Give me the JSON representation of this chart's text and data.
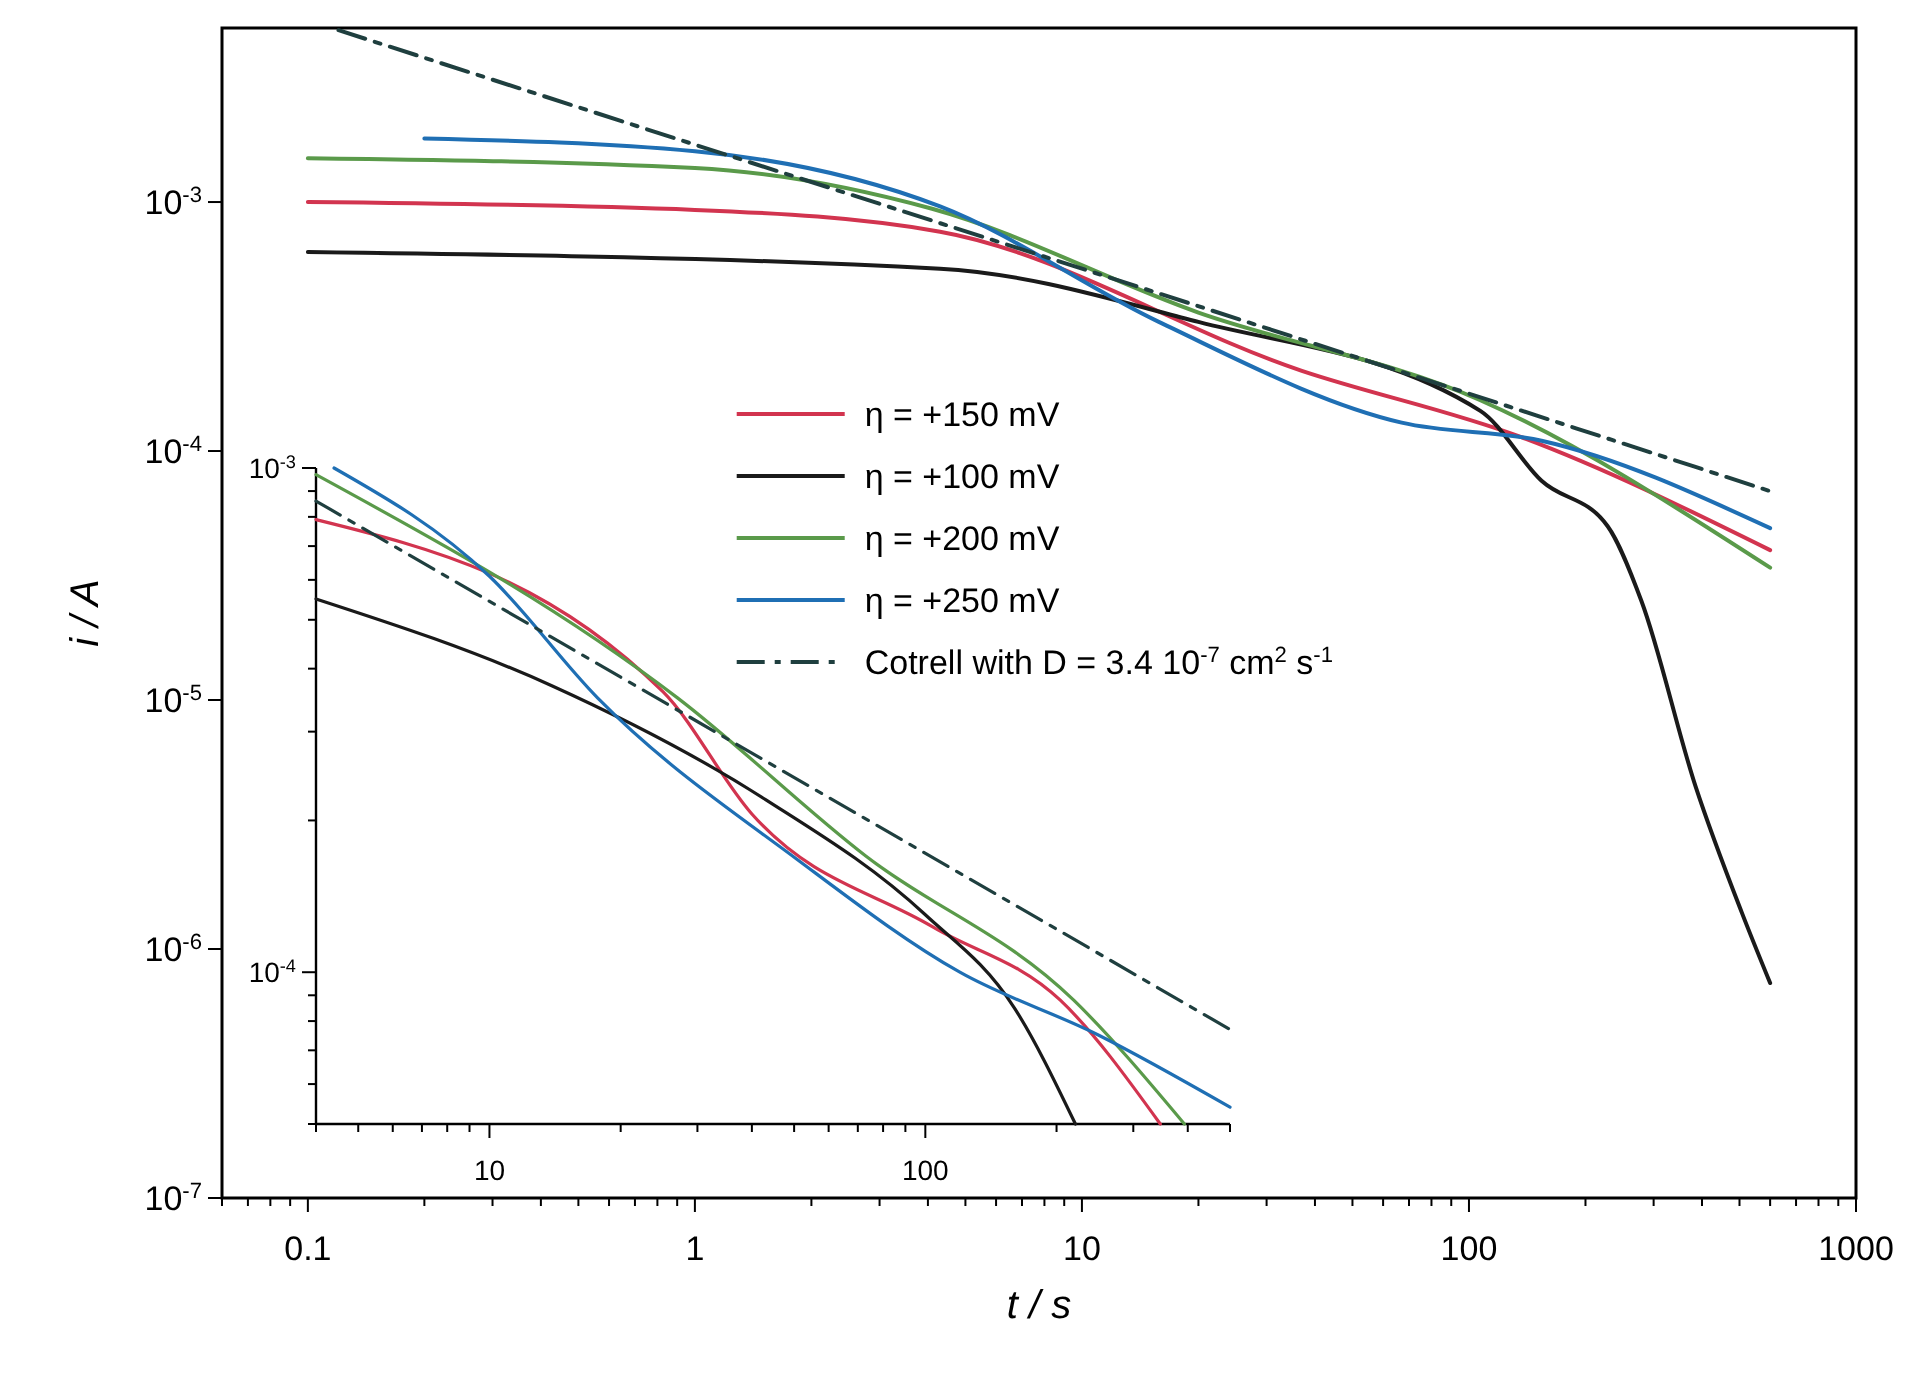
{
  "chart_data": [
    {
      "type": "line",
      "xlabel": "t / s",
      "ylabel": "i / A",
      "log": "xy",
      "legend": "center",
      "xlim": [
        0.06,
        1000
      ],
      "ylim": [
        1e-07,
        0.005
      ],
      "xticks": [
        {
          "value": 0.06,
          "label": null
        },
        {
          "value": 0.07,
          "label": null
        },
        {
          "value": 0.08,
          "label": null
        },
        {
          "value": 0.09,
          "label": null
        },
        {
          "value": 0.1,
          "label": "0.1"
        },
        {
          "value": 0.2,
          "label": null
        },
        {
          "value": 0.3,
          "label": null
        },
        {
          "value": 0.4,
          "label": null
        },
        {
          "value": 0.5,
          "label": null
        },
        {
          "value": 0.6,
          "label": null
        },
        {
          "value": 0.7,
          "label": null
        },
        {
          "value": 0.8,
          "label": null
        },
        {
          "value": 0.9,
          "label": null
        },
        {
          "value": 1,
          "label": "1"
        },
        {
          "value": 2,
          "label": null
        },
        {
          "value": 3,
          "label": null
        },
        {
          "value": 4,
          "label": null
        },
        {
          "value": 5,
          "label": null
        },
        {
          "value": 6,
          "label": null
        },
        {
          "value": 7,
          "label": null
        },
        {
          "value": 8,
          "label": null
        },
        {
          "value": 9,
          "label": null
        },
        {
          "value": 10,
          "label": "10"
        },
        {
          "value": 20,
          "label": null
        },
        {
          "value": 30,
          "label": null
        },
        {
          "value": 40,
          "label": null
        },
        {
          "value": 50,
          "label": null
        },
        {
          "value": 60,
          "label": null
        },
        {
          "value": 70,
          "label": null
        },
        {
          "value": 80,
          "label": null
        },
        {
          "value": 90,
          "label": null
        },
        {
          "value": 100,
          "label": "100"
        },
        {
          "value": 200,
          "label": null
        },
        {
          "value": 300,
          "label": null
        },
        {
          "value": 400,
          "label": null
        },
        {
          "value": 500,
          "label": null
        },
        {
          "value": 600,
          "label": null
        },
        {
          "value": 700,
          "label": null
        },
        {
          "value": 800,
          "label": null
        },
        {
          "value": 900,
          "label": null
        },
        {
          "value": 1000,
          "label": "1000"
        }
      ],
      "yticks": [
        {
          "value": 1e-07,
          "label": "10$^{-7}$"
        },
        {
          "value": 1e-06,
          "label": "10$^{-6}$"
        },
        {
          "value": 1e-05,
          "label": "10$^{-5}$"
        },
        {
          "value": 0.0001,
          "label": "10$^{-4}$"
        },
        {
          "value": 0.001,
          "label": "10$^{-3}$"
        }
      ],
      "series": [
        {
          "name": "η = +150 mV",
          "color": "#d2344f",
          "x": [
            0.1,
            1,
            4.3,
            37,
            136,
            600
          ],
          "values": [
            0.001,
            0.00093,
            0.00076,
            0.00021,
            0.000114,
            4e-05
          ]
        },
        {
          "name": "η = +100 mV",
          "color": "#1a1a1a",
          "x": [
            0.1,
            4.3,
            20,
            107,
            154,
            228,
            279,
            385,
            507,
            600
          ],
          "values": [
            0.00063,
            0.00054,
            0.00033,
            0.000145,
            7.6e-05,
            5e-05,
            2.5e-05,
            4.5e-06,
            1.4e-06,
            7.3e-07
          ]
        },
        {
          "name": "η = +200 mV",
          "color": "#5a9a4a",
          "x": [
            0.1,
            1,
            4.1,
            20,
            107,
            600
          ],
          "values": [
            0.0015,
            0.00137,
            0.00094,
            0.00036,
            0.00016,
            3.4e-05
          ]
        },
        {
          "name": "η = +250 mV",
          "color": "#1f6fb4",
          "x": [
            0.2,
            1,
            4.3,
            15.8,
            67,
            154,
            600
          ],
          "values": [
            0.0018,
            0.0016,
            0.00096,
            0.00033,
            0.00013,
            0.00011,
            4.9e-05
          ]
        },
        {
          "name": "Cotrell with D = 3.4 10$^{-7}$ cm$^{2}$ s$^{-1}$",
          "color": "#1f3f3f",
          "line_style": "dashed",
          "x": [
            0.12,
            1,
            10,
            100,
            600
          ],
          "values": [
            0.0049,
            0.0017,
            0.00054,
            0.00017,
            6.9e-05
          ]
        }
      ]
    },
    {
      "type": "line",
      "log": "xy",
      "xlim": [
        4,
        500
      ],
      "ylim": [
        5e-05,
        0.001
      ],
      "xticks": [
        {
          "value": 4,
          "label": null
        },
        {
          "value": 5,
          "label": null
        },
        {
          "value": 6,
          "label": null
        },
        {
          "value": 7,
          "label": null
        },
        {
          "value": 8,
          "label": null
        },
        {
          "value": 9,
          "label": null
        },
        {
          "value": 10,
          "label": "10"
        },
        {
          "value": 20,
          "label": null
        },
        {
          "value": 30,
          "label": null
        },
        {
          "value": 40,
          "label": null
        },
        {
          "value": 50,
          "label": null
        },
        {
          "value": 60,
          "label": null
        },
        {
          "value": 70,
          "label": null
        },
        {
          "value": 80,
          "label": null
        },
        {
          "value": 90,
          "label": null
        },
        {
          "value": 100,
          "label": "100"
        },
        {
          "value": 200,
          "label": null
        },
        {
          "value": 300,
          "label": null
        },
        {
          "value": 400,
          "label": null
        },
        {
          "value": 500,
          "label": null
        }
      ],
      "yticks": [
        {
          "value": 5e-05,
          "label": null
        },
        {
          "value": 6e-05,
          "label": null
        },
        {
          "value": 7e-05,
          "label": null
        },
        {
          "value": 8e-05,
          "label": null
        },
        {
          "value": 9e-05,
          "label": null
        },
        {
          "value": 0.0001,
          "label": "10$^{-4}$"
        },
        {
          "value": 0.0002,
          "label": null
        },
        {
          "value": 0.0003,
          "label": null
        },
        {
          "value": 0.0004,
          "label": null
        },
        {
          "value": 0.0005,
          "label": null
        },
        {
          "value": 0.0006,
          "label": null
        },
        {
          "value": 0.0007,
          "label": null
        },
        {
          "value": 0.0008,
          "label": null
        },
        {
          "value": 0.0009,
          "label": null
        },
        {
          "value": 0.001,
          "label": "10$^{-3}$"
        }
      ],
      "series": [
        {
          "color": "#d2344f",
          "x": [
            4,
            25,
            40,
            104,
            204,
            346
          ],
          "values": [
            0.00079,
            0.00036,
            0.000206,
            0.000123,
            8.8e-05,
            5e-05
          ]
        },
        {
          "color": "#1a1a1a",
          "x": [
            4,
            13.9,
            43,
            100,
            160,
            221
          ],
          "values": [
            0.00055,
            0.00037,
            0.00022,
            0.00013,
            8.5e-05,
            5e-05
          ]
        },
        {
          "color": "#5a9a4a",
          "x": [
            4,
            27,
            73,
            219,
            393
          ],
          "values": [
            0.00097,
            0.00035,
            0.00017,
            8.8e-05,
            5e-05
          ]
        },
        {
          "color": "#1f6fb4",
          "x": [
            4.4,
            10,
            17.7,
            51,
            120,
            250,
            500
          ],
          "values": [
            0.001,
            0.00061,
            0.00035,
            0.000167,
            0.0001,
            7.5e-05,
            5.4e-05
          ]
        },
        {
          "color": "#1f3f3f",
          "line_style": "dashed",
          "x": [
            4,
            500
          ],
          "values": [
            0.00086,
            7.7e-05
          ]
        }
      ]
    }
  ]
}
